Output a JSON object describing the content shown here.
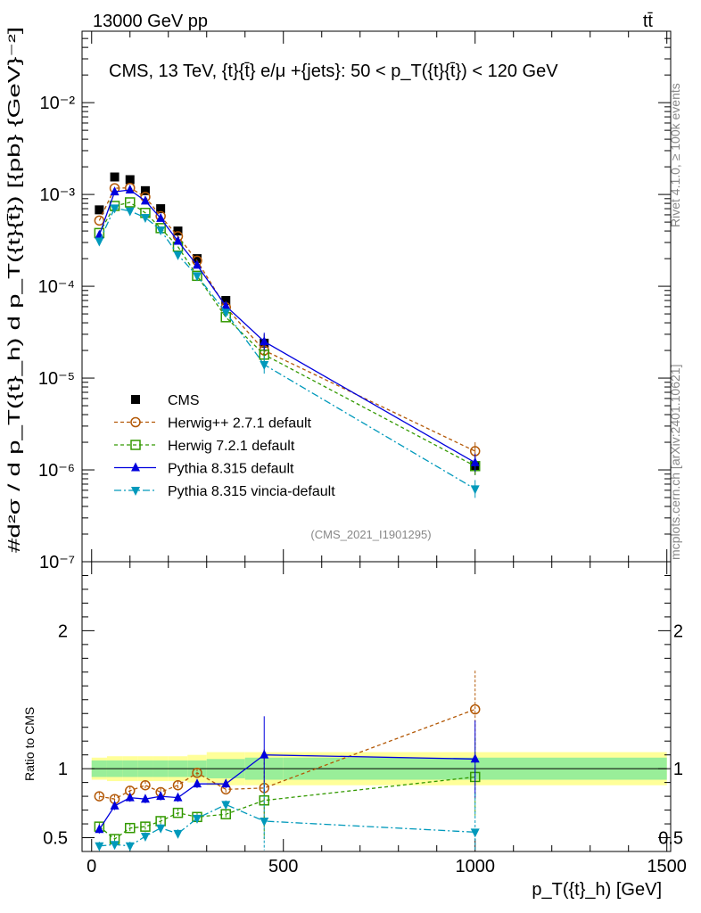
{
  "header": {
    "left": "13000 GeV pp",
    "right": "tt̄"
  },
  "side": {
    "rivet": "Rivet 4.1.0, ≥ 100k events",
    "mcplots": "mcplots.cern.ch [arXiv:2401.10621]"
  },
  "chart_data": [
    {
      "type": "scatter",
      "title": "CMS, 13 TeV, {t}{t̄} e/μ +{jets}: 50 <  p_T({t}{t̄}) < 120 GeV",
      "watermark": "(CMS_2021_I1901295)",
      "xlabel": "p_T({t}_h) [GeV]",
      "ylabel": "#d²σ / d p_T({t}_h) d p_T({t}{t̄}) [{pb} {GeV}⁻²]",
      "yscale": "log",
      "xlim": [
        -25,
        1510
      ],
      "ylim": [
        1e-07,
        0.06
      ],
      "ytick_labels": [
        "10⁻⁷",
        "10⁻⁶",
        "10⁻⁵",
        "10⁻⁴",
        "10⁻³",
        "10⁻²"
      ],
      "x": [
        20,
        60,
        100,
        140,
        180,
        225,
        275,
        350,
        450,
        1000
      ],
      "series": [
        {
          "name": "CMS",
          "color": "#000000",
          "marker": "square",
          "values": [
            0.00068,
            0.00155,
            0.00145,
            0.0011,
            0.0007,
            0.0004,
            0.0002,
            7e-05,
            2.4e-05,
            1.1e-06
          ]
        },
        {
          "name": "Herwig++ 2.7.1 default",
          "color": "#b35806",
          "marker": "open-circle",
          "dash": "4,3",
          "values": [
            0.00052,
            0.00117,
            0.00118,
            0.00094,
            0.00058,
            0.00035,
            0.00019,
            5.9e-05,
            2e-05,
            1.6e-06
          ]
        },
        {
          "name": "Herwig 7.2.1 default",
          "color": "#339900",
          "marker": "open-square",
          "dash": "4,3",
          "values": [
            0.00038,
            0.00075,
            0.00082,
            0.00063,
            0.00043,
            0.00027,
            0.00013,
            4.6e-05,
            1.8e-05,
            1.1e-06
          ]
        },
        {
          "name": "Pythia 8.315 default",
          "color": "#0000dd",
          "marker": "triangle-up",
          "values": [
            0.00036,
            0.00107,
            0.00112,
            0.00085,
            0.00055,
            0.00031,
            0.00017,
            6.1e-05,
            2.5e-05,
            1.2e-06
          ]
        },
        {
          "name": "Pythia 8.315 vincia-default",
          "color": "#0099bb",
          "marker": "triangle-down",
          "dash": "8,3,2,3",
          "values": [
            0.00031,
            0.00071,
            0.00066,
            0.00056,
            0.00041,
            0.00022,
            0.00013,
            5.2e-05,
            1.4e-05,
            6.2e-07
          ]
        }
      ]
    },
    {
      "type": "scatter",
      "ylabel": "Ratio to CMS",
      "xlim": [
        -25,
        1510
      ],
      "ylim": [
        0.4,
        2.5
      ],
      "ytick_labels": [
        "0.5",
        "1",
        "2"
      ],
      "xtick_labels": [
        "0",
        "500",
        "1000",
        "1500"
      ],
      "x": [
        20,
        60,
        100,
        140,
        180,
        225,
        275,
        350,
        450,
        1000
      ],
      "bands": {
        "x_edges": [
          0,
          40,
          80,
          120,
          160,
          200,
          250,
          300,
          400,
          500,
          1500
        ],
        "inner": [
          0.06,
          0.06,
          0.06,
          0.06,
          0.06,
          0.06,
          0.06,
          0.07,
          0.08,
          0.08
        ],
        "outer": [
          0.08,
          0.09,
          0.09,
          0.09,
          0.09,
          0.09,
          0.1,
          0.12,
          0.12,
          0.12
        ]
      },
      "series": [
        {
          "name": "Herwig++ 2.7.1 default",
          "values": [
            0.8,
            0.78,
            0.84,
            0.88,
            0.83,
            0.88,
            0.97,
            0.85,
            0.86,
            1.43
          ]
        },
        {
          "name": "Herwig 7.2.1 default",
          "values": [
            0.58,
            0.49,
            0.57,
            0.58,
            0.62,
            0.68,
            0.65,
            0.67,
            0.77,
            0.94
          ]
        },
        {
          "name": "Pythia 8.315 default",
          "values": [
            0.56,
            0.73,
            0.79,
            0.78,
            0.8,
            0.79,
            0.89,
            0.89,
            1.1,
            1.07
          ]
        },
        {
          "name": "Pythia 8.315 vincia-default",
          "values": [
            0.44,
            0.45,
            0.44,
            0.51,
            0.57,
            0.53,
            0.64,
            0.74,
            0.62,
            0.54
          ]
        }
      ]
    }
  ]
}
